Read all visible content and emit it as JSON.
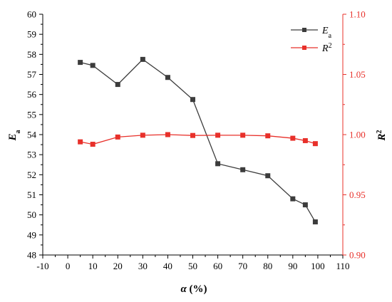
{
  "chart_data": {
    "type": "line",
    "title": "",
    "x": [
      5,
      10,
      20,
      30,
      40,
      50,
      60,
      70,
      80,
      90,
      95,
      99
    ],
    "xlabel_main": "α",
    "xlabel_unit": " (%)",
    "xlim": [
      -10,
      110
    ],
    "xticks": [
      -10,
      0,
      10,
      20,
      30,
      40,
      50,
      60,
      70,
      80,
      90,
      100,
      110
    ],
    "ylabel_left_main": "E",
    "ylabel_left_sub": "a",
    "ylim_left": [
      48,
      60
    ],
    "yticks_left": [
      48,
      49,
      50,
      51,
      52,
      53,
      54,
      55,
      56,
      57,
      58,
      59,
      60
    ],
    "ylabel_right_main": "R",
    "ylabel_right_sup": "2",
    "ylim_right": [
      0.9,
      1.1
    ],
    "yticks_right": [
      "0.90",
      "0.95",
      "1.00",
      "1.05",
      "1.10"
    ],
    "series": [
      {
        "name_main": "E",
        "name_sub": "a",
        "axis": "left",
        "color": "#3c3c3c",
        "marker": "square",
        "values": [
          57.6,
          57.45,
          56.5,
          57.75,
          56.85,
          55.75,
          52.55,
          52.25,
          51.95,
          50.8,
          50.5,
          49.65
        ]
      },
      {
        "name_main": "R",
        "name_sup": "2",
        "axis": "right",
        "color": "#e8302a",
        "marker": "square",
        "values": [
          0.994,
          0.992,
          0.998,
          0.9995,
          1.0,
          0.9993,
          0.9995,
          0.9995,
          0.999,
          0.997,
          0.995,
          0.9925
        ]
      }
    ],
    "legend_position": "top-right",
    "grid": false
  }
}
